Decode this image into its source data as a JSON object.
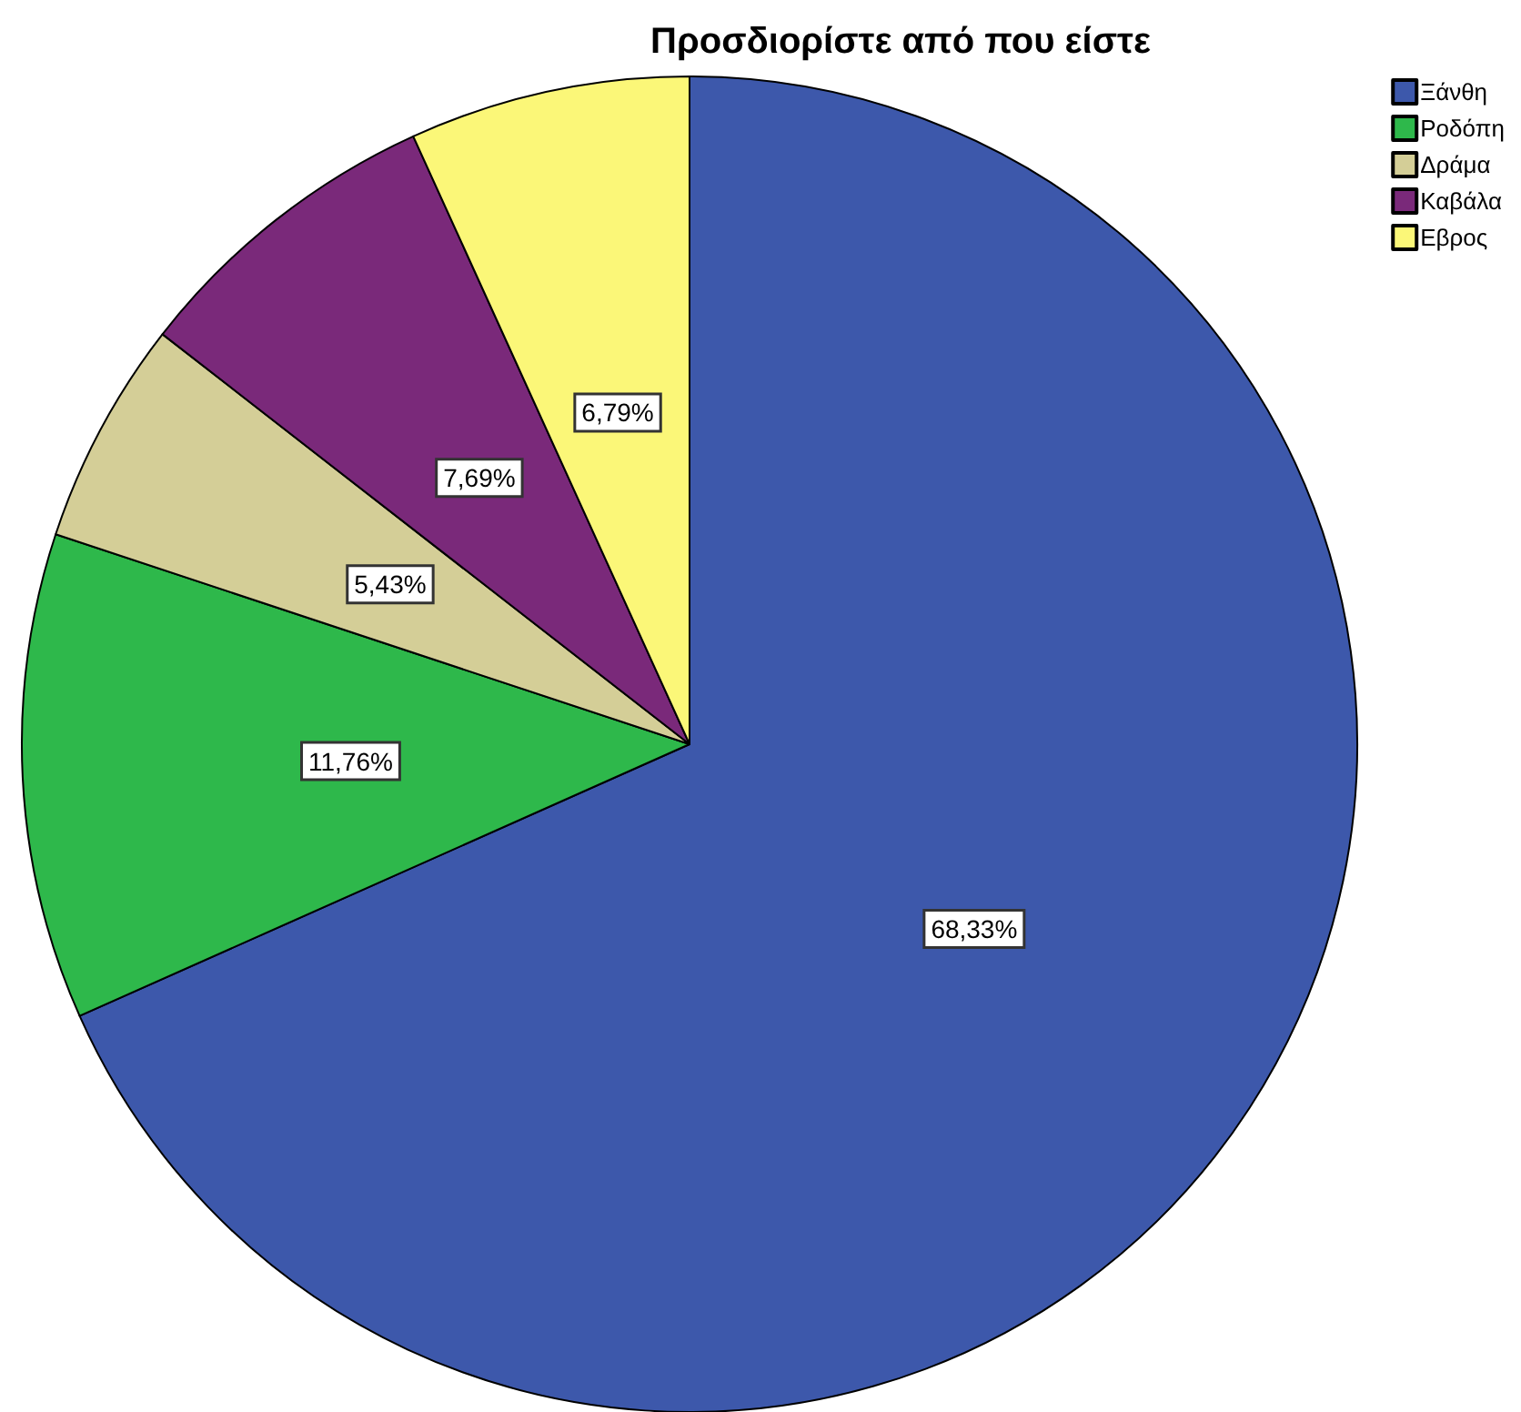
{
  "chart_data": {
    "type": "pie",
    "title": "Προσδιορίστε από που είστε",
    "categories": [
      "Ξάνθη",
      "Ροδόπη",
      "Δράμα",
      "Καβάλα",
      "Εβρος"
    ],
    "values": [
      68.33,
      11.76,
      5.43,
      7.69,
      6.79
    ],
    "colors": [
      "#3d58ab",
      "#2eb84b",
      "#d4ce97",
      "#7a297a",
      "#fbf778"
    ],
    "value_labels": [
      "68,33%",
      "11,76%",
      "5,43%",
      "7,69%",
      "6,79%"
    ],
    "legend": "top right"
  }
}
